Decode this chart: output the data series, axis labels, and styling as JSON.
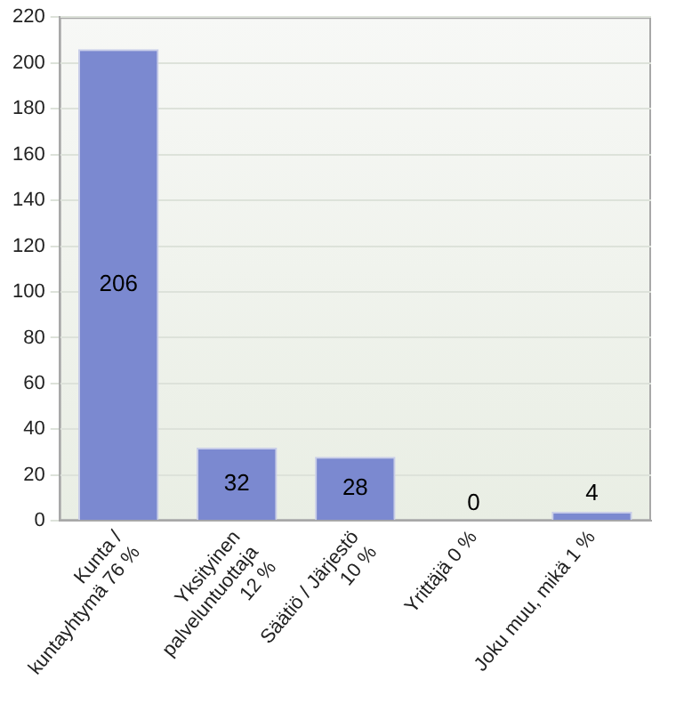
{
  "chart_data": {
    "type": "bar",
    "categories": [
      "Kunta / kuntayhtymä 76 %",
      "Yksityinen palveluntuottaja 12 %",
      "Säätiö / Järjestö 10 %",
      "Yrittäjä 0 %",
      "Joku muu, mikä 1 %"
    ],
    "values": [
      206,
      32,
      28,
      0,
      4
    ],
    "color": "#7b89d0",
    "ylim": [
      0,
      220
    ],
    "yticks": [
      0,
      20,
      40,
      60,
      80,
      100,
      120,
      140,
      160,
      180,
      200,
      220
    ],
    "grid": "y",
    "data_labels": true
  }
}
